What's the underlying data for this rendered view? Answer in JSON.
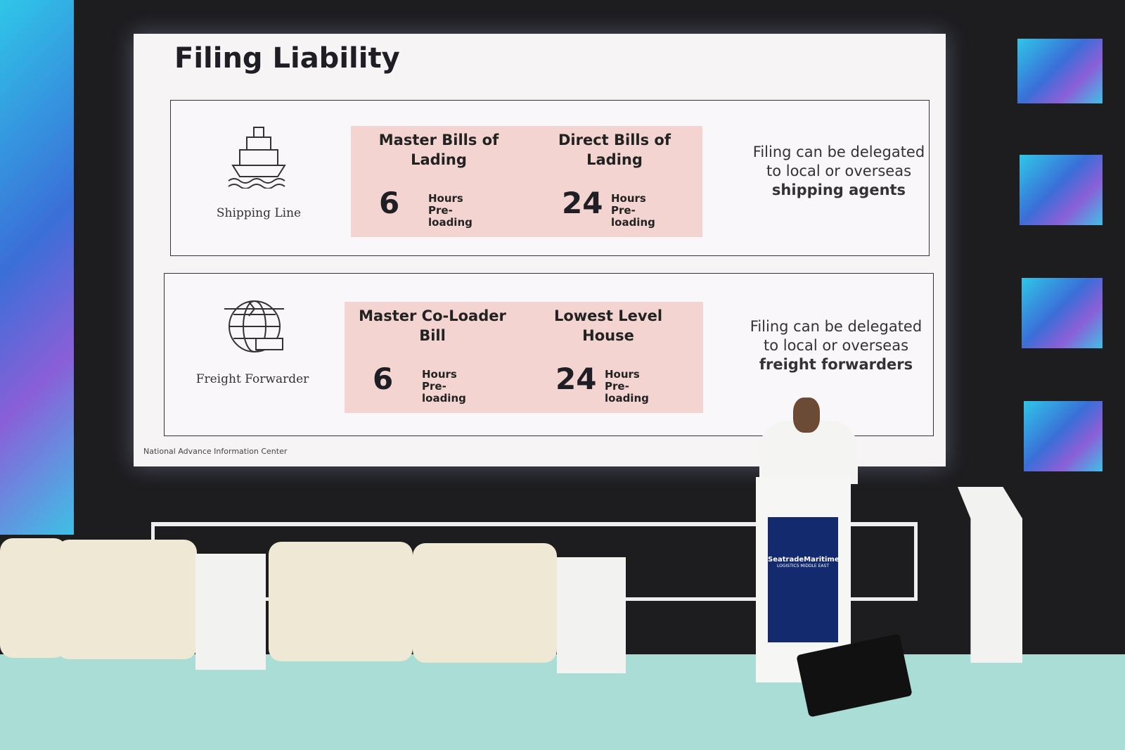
{
  "slide": {
    "title": "Filing Liability",
    "footer": "National Advance Information Center",
    "rows": [
      {
        "label": "Shipping Line",
        "items": [
          {
            "heading": "Master Bills of Lading",
            "number": 6,
            "unit": "Hours Pre-loading"
          },
          {
            "heading": "Direct Bills of Lading",
            "number": 24,
            "unit": "Hours Pre-loading"
          }
        ],
        "note": "Filing can be delegated to local or overseas",
        "note_bold": "shipping agents"
      },
      {
        "label": "Freight Forwarder",
        "items": [
          {
            "heading": "Master Co-Loader Bill",
            "number": 6,
            "unit": "Hours Pre-loading"
          },
          {
            "heading": "Lowest Level House",
            "number": 24,
            "unit": "Hours Pre-loading"
          }
        ],
        "note": "Filing can be delegated to local or overseas",
        "note_bold": "freight forwarders"
      }
    ]
  },
  "podium": {
    "brand": "SeatradeMaritime",
    "subtitle": "LOGISTICS MIDDLE EAST"
  }
}
